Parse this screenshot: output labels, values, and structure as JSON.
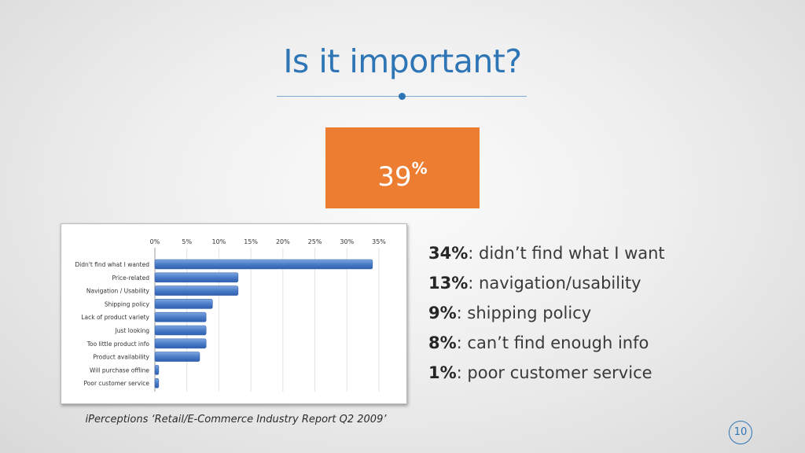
{
  "slide": {
    "title": "Is it important?",
    "stat_value": "39",
    "stat_unit": "%",
    "source": "iPerceptions ‘Retail/E-Commerce Industry Report Q2 2009’",
    "page_number": "10",
    "accent_color": "#2e75b6",
    "stat_box_color": "#ed7d31"
  },
  "stats": [
    {
      "value": "34%",
      "text": ": didn’t find what I want"
    },
    {
      "value": "13%",
      "text": ": navigation/usability"
    },
    {
      "value": "9%",
      "text": ": shipping policy"
    },
    {
      "value": "8%",
      "text": ": can’t find enough info"
    },
    {
      "value": "1%",
      "text": ": poor customer service"
    }
  ],
  "chart_data": {
    "type": "bar",
    "orientation": "horizontal",
    "categories": [
      "Didn't find what I wanted",
      "Price-related",
      "Navigation / Usability",
      "Shipping policy",
      "Lack of product variety",
      "Just looking",
      "Too little product info",
      "Product availability",
      "Will purchase offline",
      "Poor customer service"
    ],
    "values": [
      34,
      13,
      13,
      9,
      8,
      8,
      8,
      7,
      0.6,
      0.6
    ],
    "xlim": [
      0,
      35
    ],
    "ticks": [
      "0%",
      "5%",
      "10%",
      "15%",
      "20%",
      "25%",
      "30%",
      "35%"
    ],
    "tick_values": [
      0,
      5,
      10,
      15,
      20,
      25,
      30,
      35
    ],
    "bar_color": "#4a7cc8",
    "grid": true,
    "title": "",
    "xlabel": "",
    "ylabel": ""
  }
}
